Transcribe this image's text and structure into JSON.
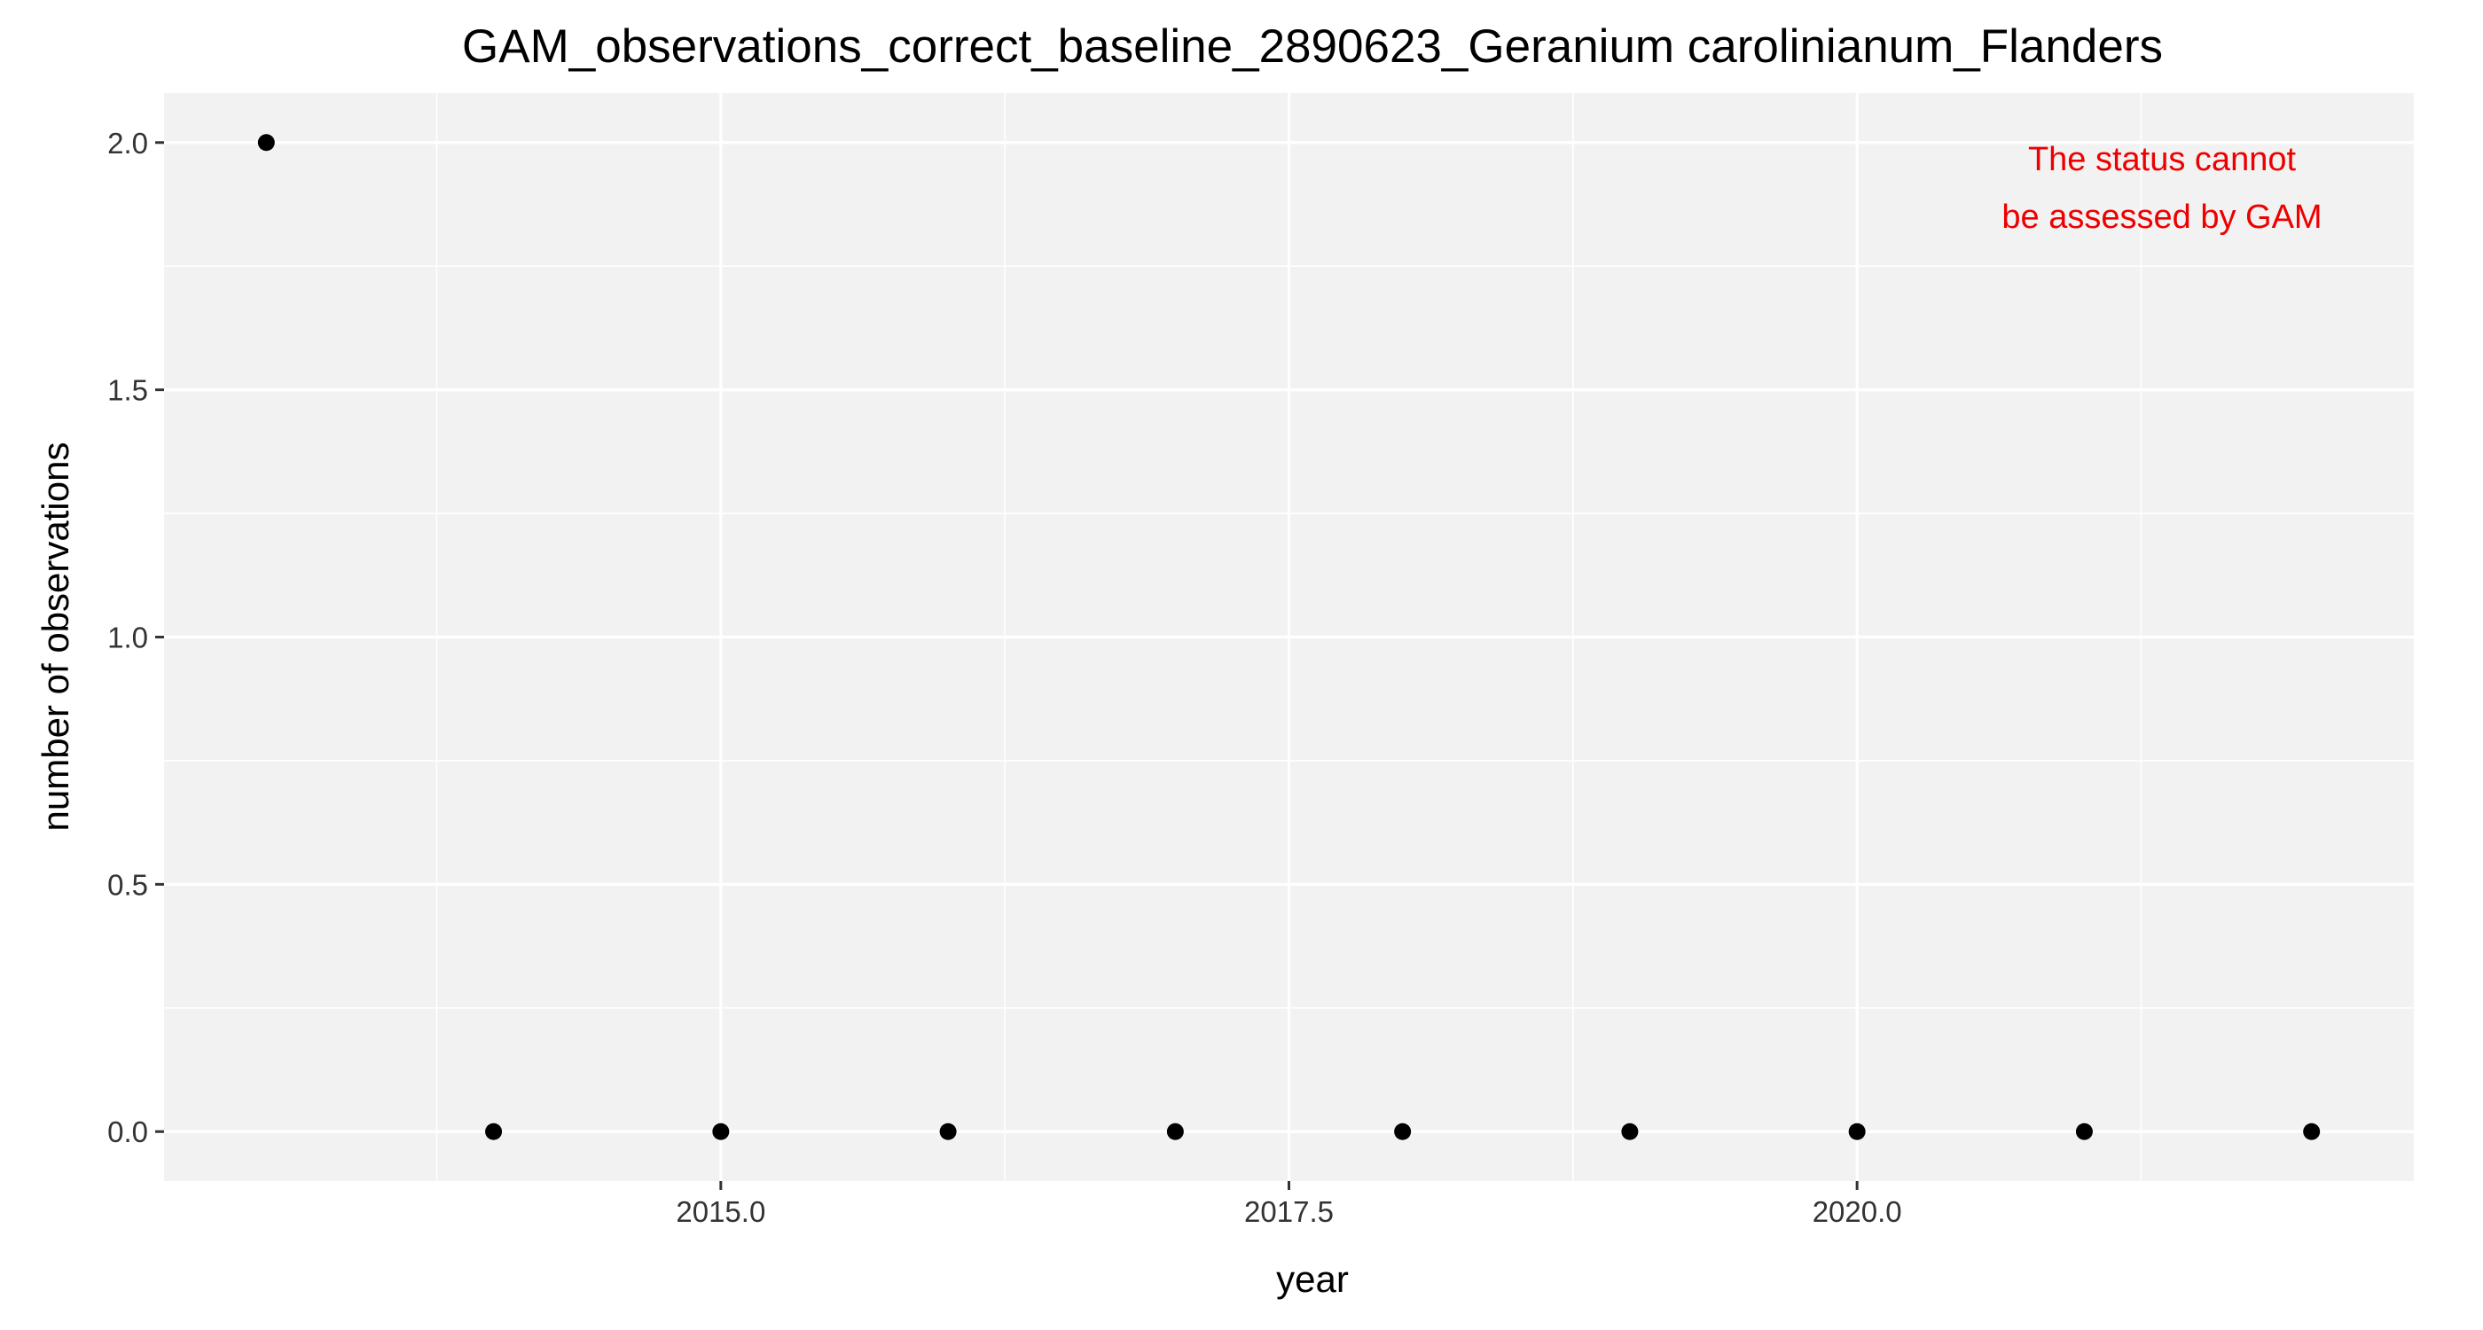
{
  "chart_data": {
    "type": "scatter",
    "title": "GAM_observations_correct_baseline_2890623_Geranium carolinianum_Flanders",
    "xlabel": "year",
    "ylabel": "number of observations",
    "x": [
      2013,
      2014,
      2015,
      2016,
      2017,
      2018,
      2019,
      2020,
      2021,
      2022
    ],
    "y": [
      2,
      0,
      0,
      0,
      0,
      0,
      0,
      0,
      0,
      0
    ],
    "xlim": [
      2012.55,
      2022.45
    ],
    "ylim": [
      -0.1,
      2.1
    ],
    "x_ticks": [
      {
        "value": 2015.0,
        "label": "2015.0"
      },
      {
        "value": 2017.5,
        "label": "2017.5"
      },
      {
        "value": 2020.0,
        "label": "2020.0"
      }
    ],
    "x_minor_ticks": [
      2013.75,
      2016.25,
      2018.75,
      2021.25
    ],
    "y_ticks": [
      {
        "value": 0.0,
        "label": "0.0"
      },
      {
        "value": 0.5,
        "label": "0.5"
      },
      {
        "value": 1.0,
        "label": "1.0"
      },
      {
        "value": 1.5,
        "label": "1.5"
      },
      {
        "value": 2.0,
        "label": "2.0"
      }
    ],
    "y_minor_ticks": [
      0.25,
      0.75,
      1.25,
      1.75
    ],
    "grid": true,
    "legend": "none",
    "annotation": {
      "lines": [
        "The status cannot",
        "be assessed by GAM"
      ],
      "color": "#ee0000",
      "placement": "top-right"
    },
    "colors": {
      "panel_background": "#f2f2f2",
      "grid": "#ffffff",
      "points": "#000000"
    }
  }
}
